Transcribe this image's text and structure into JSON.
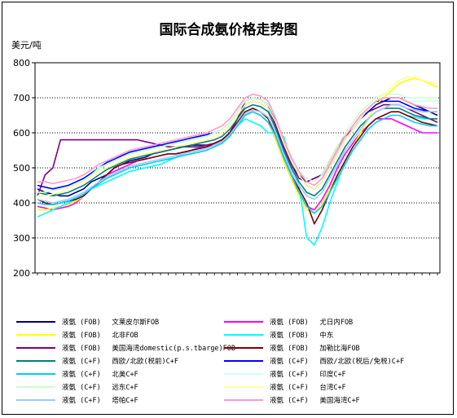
{
  "chart_data": {
    "type": "line",
    "title": "国际合成氨价格走势图",
    "ylabel": "美元/吨",
    "ylim": [
      200,
      800
    ],
    "yticks": [
      200,
      300,
      400,
      500,
      600,
      700,
      800
    ],
    "grid": "horizontal-dotted",
    "legend_position": "bottom",
    "series": [
      {
        "name": "液氨 (FOB) 　文莱皮尔斯FOB",
        "color": "#000080",
        "values": [
          440,
          430,
          425,
          420,
          420,
          430,
          440,
          460,
          470,
          480,
          500,
          510,
          520,
          525,
          530,
          540,
          545,
          550,
          555,
          560,
          565,
          565,
          565,
          570,
          580,
          600,
          640,
          690,
          700,
          695,
          680,
          620,
          560,
          510,
          480,
          460,
          470,
          480,
          520,
          560,
          590,
          610,
          640,
          670,
          690,
          690,
          700,
          700,
          690,
          680,
          670,
          660,
          650
        ]
      },
      {
        "name": "液氨 (FOB) 　尤日内FOB",
        "color": "#ff00ff",
        "values": [
          390,
          385,
          380,
          385,
          390,
          400,
          420,
          440,
          460,
          480,
          490,
          500,
          510,
          520,
          525,
          530,
          535,
          540,
          540,
          545,
          550,
          555,
          560,
          565,
          575,
          590,
          620,
          650,
          660,
          650,
          630,
          580,
          520,
          470,
          430,
          390,
          380,
          410,
          450,
          500,
          540,
          570,
          600,
          620,
          640,
          640,
          640,
          630,
          620,
          610,
          600,
          600,
          600
        ]
      },
      {
        "name": "液氨 (FOB) 　北非FOB",
        "color": "#ffff00",
        "values": [
          380,
          380,
          385,
          390,
          395,
          405,
          420,
          440,
          460,
          470,
          480,
          490,
          500,
          505,
          510,
          515,
          520,
          525,
          530,
          535,
          540,
          545,
          550,
          560,
          570,
          590,
          620,
          650,
          660,
          650,
          630,
          580,
          520,
          470,
          420,
          380,
          370,
          400,
          440,
          480,
          520,
          560,
          600,
          640,
          680,
          700,
          720,
          740,
          750,
          755,
          750,
          740,
          730
        ]
      },
      {
        "name": "液氨 (FOB) 　中东",
        "color": "#00ffff",
        "values": [
          360,
          370,
          380,
          390,
          400,
          410,
          420,
          440,
          450,
          460,
          470,
          480,
          490,
          495,
          500,
          505,
          510,
          520,
          530,
          540,
          550,
          560,
          565,
          570,
          580,
          600,
          620,
          640,
          630,
          620,
          600,
          600,
          590,
          520,
          450,
          300,
          280,
          330,
          400,
          460,
          520,
          560,
          590,
          620,
          640,
          650,
          660,
          660,
          650,
          645,
          640,
          640,
          640
        ]
      },
      {
        "name": "液氨 (FOB) 　美国海湾domestic(p.s.tbarge)FOB",
        "color": "#800080",
        "values": [
          420,
          480,
          500,
          580,
          580,
          580,
          580,
          580,
          580,
          580,
          580,
          580,
          580,
          580,
          575,
          570,
          565,
          560,
          560,
          560,
          560,
          560,
          565,
          570,
          580,
          600,
          640,
          680,
          690,
          685,
          670,
          620,
          560,
          510,
          470,
          460,
          470,
          480,
          520,
          560,
          590,
          610,
          640,
          660,
          670,
          680,
          680,
          680,
          670,
          660,
          650,
          640,
          630
        ]
      },
      {
        "name": "液氨 (FOB) 　加勒比海FOB",
        "color": "#800000",
        "values": [
          410,
          400,
          395,
          400,
          405,
          410,
          420,
          440,
          460,
          480,
          500,
          510,
          515,
          520,
          525,
          530,
          535,
          540,
          540,
          545,
          550,
          555,
          560,
          570,
          580,
          600,
          630,
          660,
          670,
          660,
          640,
          590,
          530,
          480,
          440,
          400,
          340,
          380,
          430,
          480,
          520,
          560,
          590,
          620,
          640,
          650,
          660,
          660,
          650,
          640,
          630,
          625,
          620
        ]
      },
      {
        "name": "液氨 (C+F) 　西欧/北欧(税前)C+F",
        "color": "#008080",
        "values": [
          430,
          425,
          420,
          425,
          430,
          440,
          450,
          465,
          480,
          495,
          505,
          515,
          525,
          530,
          535,
          540,
          545,
          550,
          555,
          560,
          565,
          570,
          575,
          580,
          590,
          610,
          640,
          670,
          680,
          675,
          660,
          610,
          550,
          500,
          460,
          430,
          420,
          440,
          480,
          520,
          560,
          590,
          620,
          640,
          660,
          670,
          670,
          670,
          660,
          650,
          645,
          640,
          640
        ]
      },
      {
        "name": "液氨 (C+F) 　西欧/北欧(税后/免税)C+F",
        "color": "#0000ff",
        "values": [
          450,
          445,
          440,
          445,
          450,
          460,
          470,
          485,
          500,
          515,
          525,
          535,
          545,
          550,
          555,
          560,
          565,
          570,
          575,
          580,
          585,
          590,
          595,
          600,
          610,
          630,
          660,
          690,
          700,
          695,
          680,
          630,
          570,
          520,
          480,
          450,
          440,
          460,
          500,
          540,
          580,
          610,
          640,
          660,
          680,
          690,
          690,
          690,
          680,
          670,
          665,
          660,
          660
        ]
      },
      {
        "name": "液氨 (C+F) 　北美C+F",
        "color": "#00ccff",
        "values": [
          400,
          395,
          395,
          400,
          405,
          415,
          425,
          440,
          455,
          470,
          480,
          490,
          500,
          505,
          510,
          515,
          520,
          525,
          530,
          535,
          540,
          545,
          550,
          560,
          570,
          590,
          620,
          650,
          660,
          650,
          630,
          590,
          530,
          480,
          430,
          390,
          370,
          390,
          430,
          470,
          510,
          550,
          580,
          610,
          630,
          640,
          650,
          650,
          640,
          630,
          625,
          620,
          620
        ]
      },
      {
        "name": "液氨 (C+F) 　印度C+F",
        "color": "#ccffff",
        "values": [
          420,
          420,
          425,
          430,
          440,
          450,
          460,
          480,
          500,
          510,
          520,
          530,
          540,
          545,
          550,
          555,
          560,
          565,
          570,
          575,
          580,
          585,
          590,
          600,
          610,
          630,
          660,
          690,
          700,
          695,
          680,
          640,
          580,
          530,
          490,
          460,
          450,
          470,
          510,
          550,
          590,
          620,
          650,
          670,
          690,
          700,
          700,
          700,
          690,
          690,
          690,
          690,
          690
        ]
      },
      {
        "name": "液氨 (C+F) 　远东C+F",
        "color": "#ccffcc",
        "values": [
          430,
          430,
          435,
          440,
          445,
          455,
          465,
          480,
          495,
          510,
          520,
          530,
          540,
          545,
          550,
          555,
          560,
          565,
          570,
          575,
          580,
          585,
          590,
          600,
          610,
          630,
          660,
          690,
          700,
          695,
          680,
          640,
          580,
          530,
          490,
          470,
          460,
          480,
          520,
          560,
          600,
          630,
          660,
          680,
          700,
          710,
          710,
          710,
          700,
          700,
          700,
          700,
          700
        ]
      },
      {
        "name": "液氨 (C+F) 　台湾C+F",
        "color": "#ffff99",
        "values": [
          420,
          420,
          425,
          430,
          440,
          450,
          460,
          475,
          490,
          500,
          510,
          520,
          530,
          535,
          540,
          545,
          550,
          555,
          560,
          565,
          570,
          575,
          580,
          590,
          600,
          620,
          650,
          680,
          690,
          685,
          670,
          630,
          570,
          520,
          480,
          450,
          440,
          460,
          500,
          540,
          580,
          610,
          640,
          670,
          690,
          710,
          730,
          750,
          760,
          760,
          750,
          745,
          740
        ]
      },
      {
        "name": "液氨 (C+F) 　塔帕C+F",
        "color": "#99ccff",
        "values": [
          410,
          405,
          400,
          405,
          410,
          420,
          430,
          445,
          460,
          475,
          485,
          495,
          505,
          510,
          515,
          520,
          525,
          530,
          535,
          540,
          545,
          550,
          555,
          565,
          575,
          595,
          625,
          655,
          665,
          660,
          645,
          600,
          540,
          490,
          450,
          420,
          410,
          430,
          470,
          510,
          550,
          580,
          610,
          640,
          660,
          670,
          680,
          680,
          670,
          665,
          660,
          660,
          660
        ]
      },
      {
        "name": "液氨 (C+F) 　美国海湾C+F",
        "color": "#ff99cc",
        "values": [
          460,
          460,
          455,
          460,
          465,
          470,
          480,
          495,
          510,
          520,
          530,
          540,
          550,
          555,
          560,
          565,
          570,
          575,
          580,
          585,
          590,
          595,
          600,
          610,
          620,
          640,
          670,
          700,
          710,
          705,
          690,
          640,
          580,
          530,
          490,
          460,
          450,
          470,
          510,
          550,
          590,
          620,
          650,
          670,
          690,
          700,
          700,
          700,
          690,
          680,
          675,
          670,
          670
        ]
      }
    ]
  }
}
